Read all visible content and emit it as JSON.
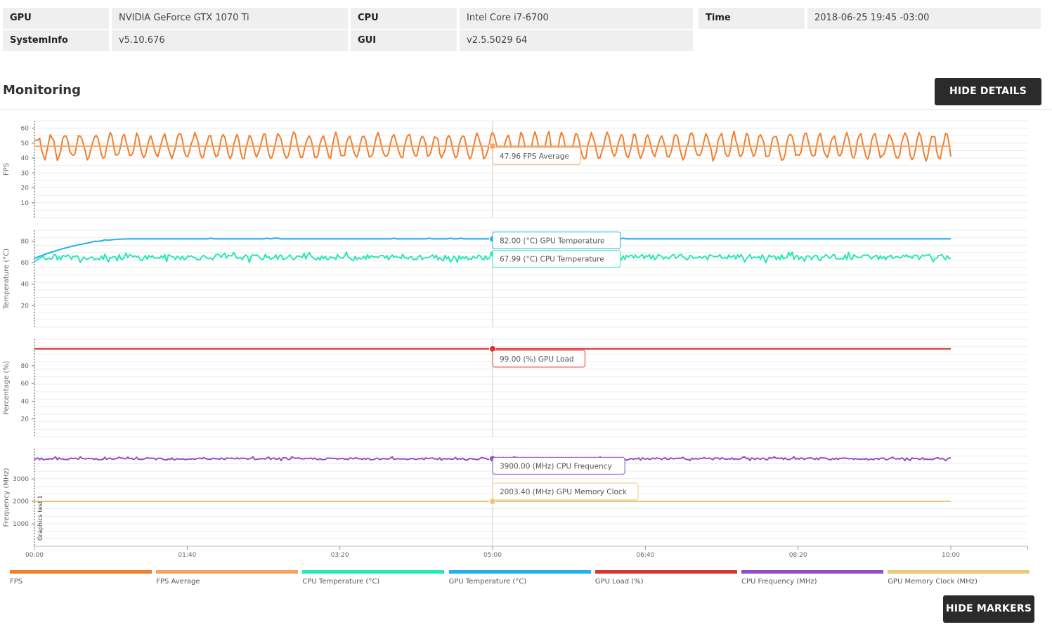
{
  "info": {
    "rows": [
      [
        {
          "key": "GPU",
          "value": "NVIDIA GeForce GTX 1070 Ti"
        },
        {
          "key": "CPU",
          "value": "Intel Core i7-6700"
        },
        {
          "key": "Time",
          "value": "2018-06-25 19:45 -03:00"
        }
      ],
      [
        {
          "key": "SystemInfo",
          "value": "v5.10.676"
        },
        {
          "key": "GUI",
          "value": "v2.5.5029 64"
        }
      ]
    ]
  },
  "monitoring": {
    "title": "Monitoring",
    "hide_details_label": "HIDE DETAILS",
    "hide_markers_label": "HIDE MARKERS"
  },
  "chart_data": {
    "type": "line",
    "x_ticks": [
      "00:00",
      "01:40",
      "03:20",
      "05:00",
      "06:40",
      "08:20",
      "10:00"
    ],
    "x_range_seconds": [
      0,
      600
    ],
    "marker_label": "Graphics test 1",
    "panels": [
      {
        "ylabel": "FPS",
        "ylim": [
          0,
          65
        ],
        "y_ticks": [
          10,
          20,
          30,
          40,
          50,
          60
        ],
        "series": [
          {
            "name": "FPS",
            "color": "#f07f2e",
            "style": "oscillating",
            "base": 47.96,
            "amp": 9,
            "start": 52
          },
          {
            "name": "FPS Average",
            "color": "#f4a566",
            "style": "flat",
            "value": 47.96
          }
        ],
        "tooltips": [
          {
            "text": "47.96 FPS Average",
            "value": 47.96,
            "color": "#f4a566"
          }
        ]
      },
      {
        "ylabel": "Temperature (°C)",
        "ylim": [
          0,
          90
        ],
        "y_ticks": [
          20,
          40,
          60,
          80
        ],
        "series": [
          {
            "name": "GPU Temperature (°C)",
            "color": "#23aef2",
            "style": "rise",
            "start": 64,
            "value": 82.0
          },
          {
            "name": "CPU Temperature (°C)",
            "color": "#26e8b5",
            "style": "noisy",
            "base": 65,
            "amp": 5
          }
        ],
        "tooltips": [
          {
            "text": "82.00 (°C) GPU Temperature",
            "value": 82.0,
            "color": "#23aef2"
          },
          {
            "text": "67.99 (°C) CPU Temperature",
            "value": 67.99,
            "color": "#26e8b5"
          }
        ]
      },
      {
        "ylabel": "Percentage (%)",
        "ylim": [
          0,
          110
        ],
        "y_ticks": [
          20,
          40,
          60,
          80
        ],
        "series": [
          {
            "name": "GPU Load (%)",
            "color": "#d93434",
            "style": "flat",
            "value": 99.0
          }
        ],
        "tooltips": [
          {
            "text": "99.00 (%) GPU Load",
            "value": 99.0,
            "color": "#d93434"
          }
        ]
      },
      {
        "ylabel": "Frequency (MHz)",
        "ylim": [
          0,
          4350
        ],
        "y_ticks": [
          1000,
          2000,
          3000
        ],
        "series": [
          {
            "name": "CPU Frequency (MHz)",
            "color": "#8e4fc7",
            "style": "noisy",
            "base": 3900,
            "amp": 90
          },
          {
            "name": "GPU Memory Clock (MHz)",
            "color": "#e8c87a",
            "style": "flat",
            "value": 2003.4
          }
        ],
        "tooltips": [
          {
            "text": "3900.00 (MHz) CPU Frequency",
            "value": 3900,
            "color": "#8e4fc7"
          },
          {
            "text": "2003.40 (MHz) GPU Memory Clock",
            "value": 2003.4,
            "color": "#e8c87a"
          }
        ]
      }
    ],
    "legend": [
      {
        "name": "FPS",
        "color": "#f07f2e"
      },
      {
        "name": "FPS Average",
        "color": "#f4a566"
      },
      {
        "name": "CPU Temperature (°C)",
        "color": "#26e8b5"
      },
      {
        "name": "GPU Temperature (°C)",
        "color": "#23aef2"
      },
      {
        "name": "GPU Load (%)",
        "color": "#d93434"
      },
      {
        "name": "CPU Frequency (MHz)",
        "color": "#8e4fc7"
      },
      {
        "name": "GPU Memory Clock (MHz)",
        "color": "#e8c87a"
      }
    ]
  }
}
